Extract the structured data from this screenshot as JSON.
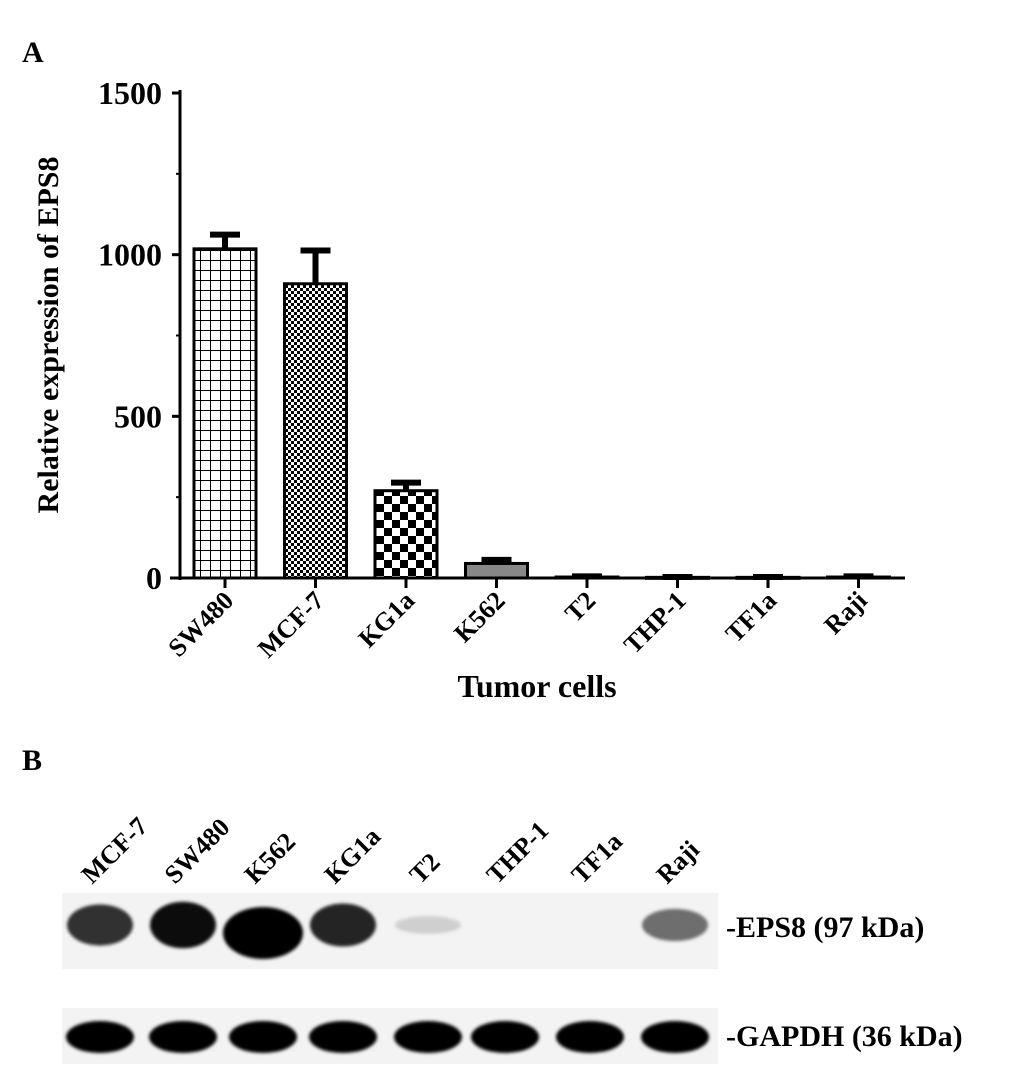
{
  "panel_a_label": "A",
  "panel_b_label": "B",
  "chart_data": {
    "type": "bar",
    "title": "",
    "xlabel": "Tumor cells",
    "ylabel": "Relative expression of EPS8",
    "ylim": [
      0,
      1500
    ],
    "yticks": [
      0,
      500,
      1000,
      1500
    ],
    "grid": false,
    "categories": [
      "SW480",
      "MCF-7",
      "KG1a",
      "K562",
      "T2",
      "THP-1",
      "TF1a",
      "Raji"
    ],
    "values": [
      1018,
      910,
      270,
      45,
      3,
      2,
      2,
      3
    ],
    "error_upper": [
      44,
      103,
      25,
      11,
      2,
      1,
      1,
      2
    ],
    "fill_patterns": [
      "grid",
      "fine-checker",
      "checker",
      "gray",
      "none",
      "none",
      "none",
      "none"
    ]
  },
  "blot": {
    "lanes": [
      "MCF-7",
      "SW480",
      "K562",
      "KG1a",
      "T2",
      "THP-1",
      "TF1a",
      "Raji"
    ],
    "rows": [
      {
        "label": "-EPS8 (97 kDa)",
        "intensity": [
          0.7,
          0.85,
          1.0,
          0.75,
          0.05,
          0.02,
          0.03,
          0.45
        ]
      },
      {
        "label": "-GAPDH (36 kDa)",
        "intensity": [
          1,
          1,
          1,
          1,
          1,
          1,
          1,
          1
        ]
      }
    ]
  }
}
